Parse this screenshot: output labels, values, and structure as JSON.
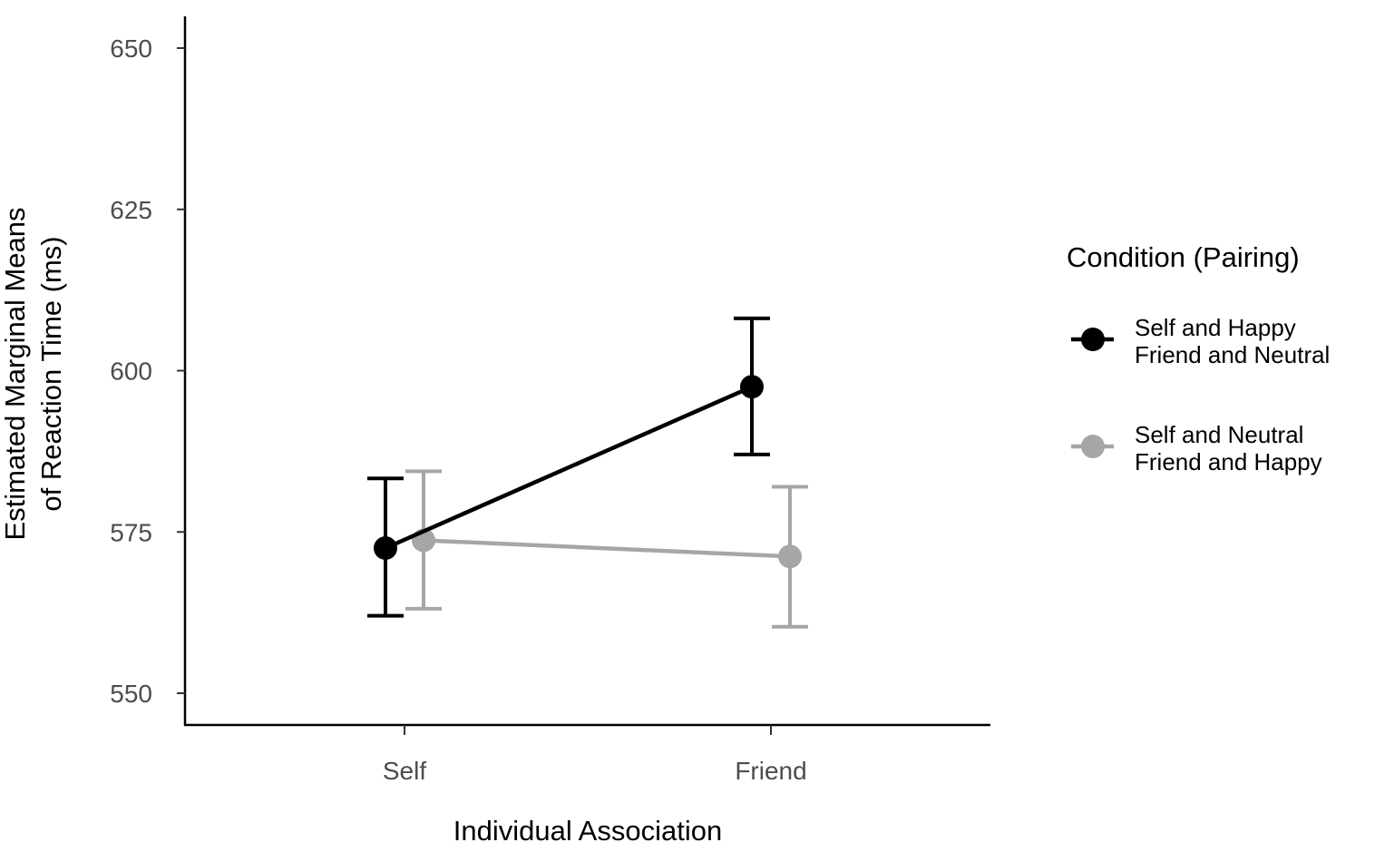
{
  "chart_data": {
    "type": "line",
    "title": "",
    "xlabel": "Individual Association",
    "ylabel": [
      "Estimated Marginal Means",
      "of Reaction Time (ms)"
    ],
    "categories": [
      "Self",
      "Friend"
    ],
    "ylim": [
      545,
      655
    ],
    "yticks": [
      550,
      575,
      600,
      625,
      650
    ],
    "grid": false,
    "legend": {
      "title": "Condition (Pairing)",
      "placement": "right",
      "entries": [
        {
          "lines": [
            "Self and Happy",
            "Friend and Neutral"
          ],
          "color": "#000000"
        },
        {
          "lines": [
            "Self and Neutral",
            "Friend and Happy"
          ],
          "color": "#a6a6a6"
        }
      ]
    },
    "series": [
      {
        "color": "#000000",
        "values": [
          572.5,
          597.5
        ],
        "lower": [
          562,
          587
        ],
        "upper": [
          583.3,
          608.1
        ]
      },
      {
        "color": "#a6a6a6",
        "values": [
          573.7,
          571.2
        ],
        "lower": [
          563.1,
          560.3
        ],
        "upper": [
          584.4,
          582
        ]
      }
    ]
  }
}
